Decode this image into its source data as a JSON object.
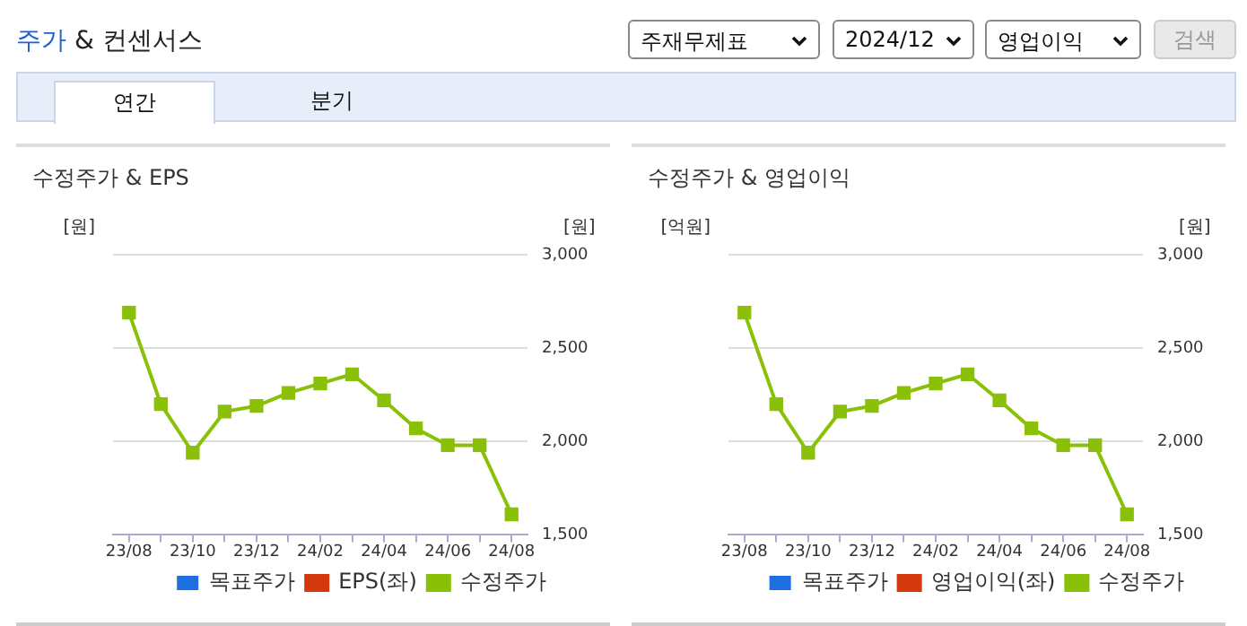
{
  "chart_data": [
    {
      "type": "other",
      "title": "주가 & 컨센서스",
      "annotations": [
        "주재무제표",
        "2024/12",
        "영업이익",
        "검색",
        "연간",
        "분기"
      ]
    },
    {
      "type": "line",
      "title": "수정주가 & EPS",
      "ylabel": "[원]",
      "y2label": "[원]",
      "categories": [
        "23/08",
        null,
        "23/10",
        null,
        "23/12",
        null,
        "24/02",
        null,
        "24/04",
        null,
        "24/06",
        null,
        "24/08"
      ],
      "series": [
        {
          "name": "목표주가",
          "type": "bar",
          "color": "#1e6fe0",
          "values": [
            null,
            null,
            null,
            null,
            null,
            null,
            null,
            null,
            null,
            null,
            null,
            null,
            null
          ]
        },
        {
          "name": "EPS(좌)",
          "type": "line",
          "color": "#d4380d",
          "values": [
            null,
            null,
            null,
            null,
            null,
            null,
            null,
            null,
            null,
            null,
            null,
            null,
            null
          ]
        },
        {
          "name": "수정주가",
          "type": "line",
          "axis": "y2",
          "color": "#8ac007",
          "values": [
            2690,
            2200,
            1940,
            2160,
            2190,
            2260,
            2310,
            2360,
            2220,
            2070,
            1980,
            1980,
            1610
          ]
        }
      ],
      "y2lim": [
        1500,
        3000
      ],
      "y2ticks": [
        {
          "value": 1500,
          "label": "1,500"
        },
        {
          "value": 2000,
          "label": "2,000"
        },
        {
          "value": 2500,
          "label": "2,500"
        },
        {
          "value": 3000,
          "label": "3,000"
        }
      ],
      "grid": "y",
      "legend": "bottom",
      "marker": "square",
      "line_style": "solid"
    },
    {
      "type": "line",
      "title": "수정주가 & 영업이익",
      "ylabel": "[억원]",
      "y2label": "[원]",
      "categories": [
        "23/08",
        null,
        "23/10",
        null,
        "23/12",
        null,
        "24/02",
        null,
        "24/04",
        null,
        "24/06",
        null,
        "24/08"
      ],
      "series": [
        {
          "name": "목표주가",
          "type": "bar",
          "color": "#1e6fe0",
          "values": [
            null,
            null,
            null,
            null,
            null,
            null,
            null,
            null,
            null,
            null,
            null,
            null,
            null
          ]
        },
        {
          "name": "영업이익(좌)",
          "type": "line",
          "color": "#d4380d",
          "values": [
            null,
            null,
            null,
            null,
            null,
            null,
            null,
            null,
            null,
            null,
            null,
            null,
            null
          ]
        },
        {
          "name": "수정주가",
          "type": "line",
          "axis": "y2",
          "color": "#8ac007",
          "values": [
            2690,
            2200,
            1940,
            2160,
            2190,
            2260,
            2310,
            2360,
            2220,
            2070,
            1980,
            1980,
            1610
          ]
        }
      ],
      "y2lim": [
        1500,
        3000
      ],
      "y2ticks": [
        {
          "value": 1500,
          "label": "1,500"
        },
        {
          "value": 2000,
          "label": "2,000"
        },
        {
          "value": 2500,
          "label": "2,500"
        },
        {
          "value": 3000,
          "label": "3,000"
        }
      ],
      "grid": "y",
      "legend": "bottom",
      "marker": "square",
      "line_style": "solid"
    }
  ]
}
